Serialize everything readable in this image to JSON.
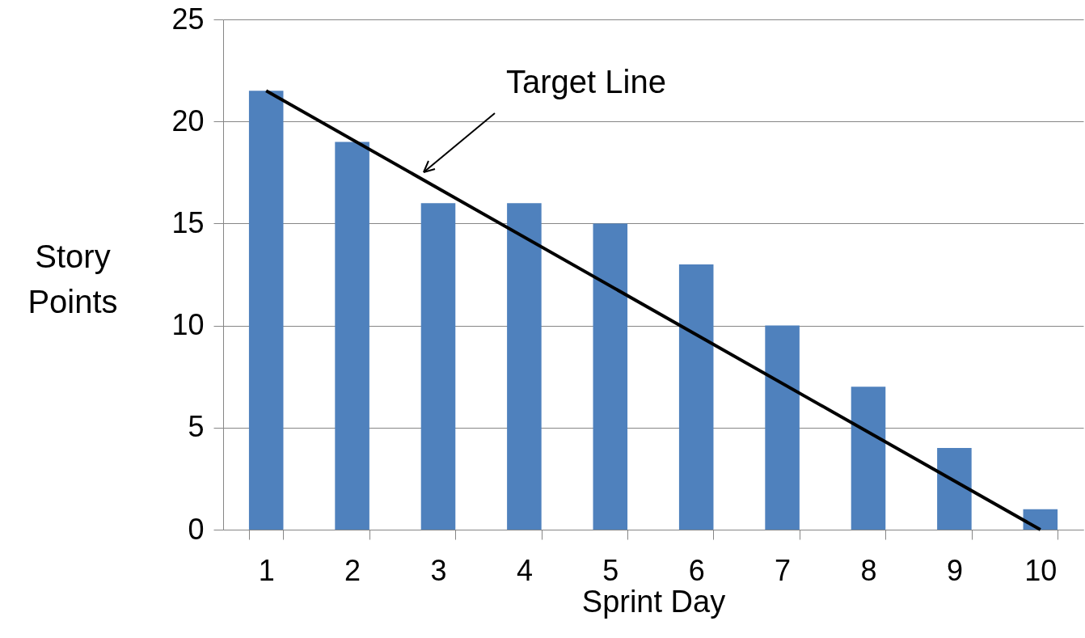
{
  "chart_data": {
    "type": "bar",
    "xlabel": "Sprint Day",
    "ylabel": "Story Points",
    "categories": [
      "1",
      "2",
      "3",
      "4",
      "5",
      "6",
      "7",
      "8",
      "9",
      "10"
    ],
    "series": [
      {
        "color": "#4f81bd",
        "values": [
          21.5,
          19,
          16,
          16,
          15,
          13,
          10,
          7,
          4,
          1
        ]
      },
      {
        "type": "line",
        "color": "#000000",
        "x": [
          "1",
          "10"
        ],
        "values": [
          21.5,
          0
        ]
      }
    ],
    "ylim": [
      0,
      25
    ],
    "yticks": [
      0,
      5,
      10,
      15,
      20,
      25
    ],
    "grid": "y",
    "annotations": [
      "Target Line"
    ]
  }
}
